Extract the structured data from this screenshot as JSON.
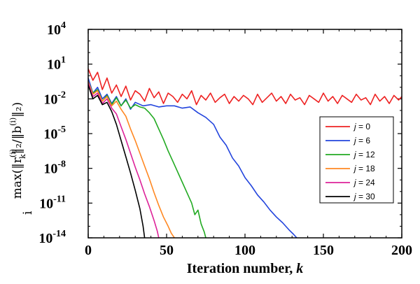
{
  "chart_data": {
    "type": "line",
    "title": "",
    "xlabel": "Iteration number, k",
    "xlabel_parts": {
      "text": "Iteration number, ",
      "var": "k"
    },
    "ylabel": "max_i(||r_k^(i)||_2 / ||b^(i)||_2)",
    "ylabel_parts": {
      "max": "max",
      "sub": "i",
      "expr": "(‖r",
      "sub_k": "k",
      "sup_i": "(i)",
      "mid": "‖₂/‖b",
      "sup_i2": "(i)",
      "end": "‖₂)"
    },
    "xlim": [
      0,
      200
    ],
    "ylim_log10": [
      -14,
      4
    ],
    "yscale": "log",
    "x_ticks": [
      "0",
      "50",
      "100",
      "150",
      "200"
    ],
    "y_ticks": [
      {
        "base": "10",
        "exp": "4"
      },
      {
        "base": "10",
        "exp": "1"
      },
      {
        "base": "10",
        "exp": "-2"
      },
      {
        "base": "10",
        "exp": "-5"
      },
      {
        "base": "10",
        "exp": "-8"
      },
      {
        "base": "10",
        "exp": "-11"
      },
      {
        "base": "10",
        "exp": "-14"
      }
    ],
    "legend_position": "right",
    "series": [
      {
        "name": "j = 0",
        "label_var": "j",
        "label_val": "= 0",
        "color": "#ee2222",
        "description": "Stagnates around 10^-2 for all 200 iterations",
        "x": [
          0,
          3,
          6,
          9,
          12,
          15,
          18,
          21,
          24,
          27,
          30,
          33,
          36,
          39,
          42,
          45,
          48,
          51,
          54,
          57,
          60,
          63,
          66,
          69,
          72,
          75,
          78,
          81,
          84,
          87,
          90,
          93,
          96,
          99,
          102,
          105,
          108,
          111,
          114,
          117,
          120,
          123,
          126,
          129,
          132,
          135,
          138,
          141,
          144,
          147,
          150,
          153,
          156,
          159,
          162,
          165,
          168,
          171,
          174,
          177,
          180,
          183,
          186,
          189,
          192,
          195,
          198,
          200
        ],
        "log10_y": [
          0.6,
          -0.4,
          0.3,
          -1.2,
          -0.2,
          -1.5,
          -0.8,
          -1.8,
          -0.9,
          -2.1,
          -1.3,
          -1.6,
          -2.2,
          -1.1,
          -1.9,
          -1.4,
          -2.4,
          -1.5,
          -1.8,
          -2.3,
          -1.6,
          -2.0,
          -1.3,
          -2.5,
          -1.7,
          -2.1,
          -1.5,
          -2.3,
          -1.9,
          -1.6,
          -2.4,
          -1.8,
          -2.2,
          -1.7,
          -2.0,
          -2.5,
          -1.6,
          -2.3,
          -1.9,
          -1.5,
          -2.2,
          -1.8,
          -2.4,
          -1.6,
          -2.1,
          -1.9,
          -2.5,
          -1.7,
          -2.0,
          -2.3,
          -1.5,
          -2.2,
          -1.8,
          -2.4,
          -1.7,
          -2.0,
          -2.3,
          -1.6,
          -2.1,
          -1.9,
          -2.5,
          -1.6,
          -2.2,
          -1.8,
          -2.4,
          -1.7,
          -2.1,
          -1.8
        ]
      },
      {
        "name": "j = 6",
        "label_var": "j",
        "label_val": "= 6",
        "color": "#2244dd",
        "description": "Flat near 10^-2 until ~k=80, then decays to 10^-14 by ~k=133",
        "x": [
          0,
          3,
          6,
          9,
          12,
          15,
          18,
          21,
          24,
          27,
          30,
          35,
          40,
          45,
          50,
          55,
          60,
          65,
          70,
          75,
          80,
          84,
          88,
          92,
          96,
          100,
          104,
          108,
          112,
          116,
          120,
          124,
          128,
          131,
          133
        ],
        "log10_y": [
          -0.2,
          -1.5,
          -1.0,
          -2.0,
          -1.6,
          -2.4,
          -1.8,
          -2.6,
          -2.0,
          -2.9,
          -2.3,
          -2.6,
          -2.5,
          -2.7,
          -2.6,
          -2.6,
          -2.8,
          -2.7,
          -3.2,
          -3.6,
          -4.2,
          -5.3,
          -6.0,
          -7.1,
          -7.8,
          -8.8,
          -9.5,
          -10.3,
          -10.9,
          -11.6,
          -12.2,
          -12.7,
          -13.3,
          -13.7,
          -14.0
        ]
      },
      {
        "name": "j = 12",
        "label_var": "j",
        "label_val": "= 12",
        "color": "#22aa22",
        "description": "Flat near 10^-2 to ~k=35, reaches 10^-14 by ~k=75",
        "x": [
          0,
          3,
          6,
          9,
          12,
          15,
          18,
          21,
          24,
          27,
          30,
          33,
          36,
          39,
          42,
          45,
          48,
          51,
          54,
          57,
          60,
          63,
          66,
          68,
          70,
          72,
          74,
          75
        ],
        "log10_y": [
          -0.5,
          -1.5,
          -1.2,
          -2.2,
          -1.7,
          -2.5,
          -1.9,
          -2.6,
          -2.1,
          -2.8,
          -2.5,
          -2.7,
          -2.8,
          -3.2,
          -3.7,
          -4.6,
          -5.5,
          -6.5,
          -7.4,
          -8.3,
          -9.2,
          -10.1,
          -11.0,
          -12.0,
          -11.6,
          -12.8,
          -13.5,
          -14.0
        ]
      },
      {
        "name": "j = 18",
        "label_var": "j",
        "label_val": "= 18",
        "color": "#ff8822",
        "description": "Decays from ~10^-2 at k=15 to 10^-14 near k=55",
        "x": [
          0,
          3,
          6,
          9,
          12,
          15,
          18,
          21,
          24,
          27,
          30,
          33,
          36,
          39,
          42,
          45,
          48,
          51,
          53,
          55
        ],
        "log10_y": [
          -0.5,
          -1.6,
          -1.3,
          -2.2,
          -1.8,
          -2.6,
          -2.2,
          -2.9,
          -3.5,
          -4.6,
          -5.6,
          -6.7,
          -7.8,
          -8.9,
          -10.1,
          -11.2,
          -12.2,
          -13.0,
          -13.6,
          -14.0
        ]
      },
      {
        "name": "j = 24",
        "label_var": "j",
        "label_val": "= 24",
        "color": "#dd2299",
        "description": "Decays from ~10^-2 at k=10 to 10^-14 near k=45",
        "x": [
          0,
          3,
          6,
          9,
          12,
          15,
          18,
          21,
          24,
          27,
          30,
          33,
          36,
          39,
          42,
          44,
          45
        ],
        "log10_y": [
          -0.6,
          -1.8,
          -1.5,
          -2.4,
          -2.0,
          -2.8,
          -3.3,
          -4.4,
          -5.5,
          -6.7,
          -7.9,
          -9.0,
          -10.2,
          -11.3,
          -12.5,
          -13.4,
          -14.0
        ]
      },
      {
        "name": "j = 30",
        "label_var": "j",
        "label_val": "= 30",
        "color": "#000000",
        "description": "Decays from ~10^-1 at k=0 to 10^-14 near k=36",
        "x": [
          0,
          3,
          6,
          9,
          12,
          15,
          18,
          21,
          24,
          27,
          30,
          33,
          35,
          36
        ],
        "log10_y": [
          -0.8,
          -2.0,
          -1.7,
          -2.5,
          -2.3,
          -3.1,
          -4.2,
          -5.6,
          -7.0,
          -8.4,
          -9.9,
          -11.5,
          -13.0,
          -14.0
        ]
      }
    ]
  }
}
